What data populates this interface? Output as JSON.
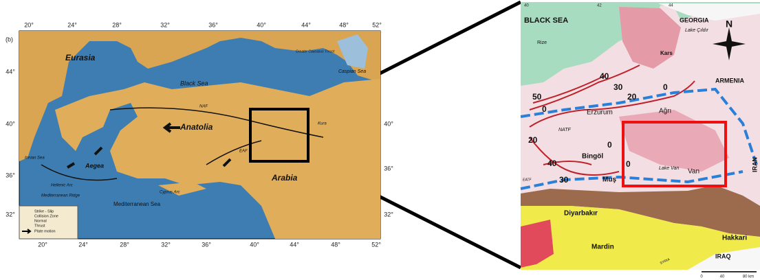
{
  "left_map": {
    "panel_label": "(b)",
    "lon_ticks": [
      "20°",
      "24°",
      "28°",
      "32°",
      "36°",
      "40°",
      "44°",
      "48°",
      "52°"
    ],
    "lat_ticks_left": [
      "44°",
      "40°",
      "36°",
      "32°"
    ],
    "lat_ticks_right": [
      "40°",
      "36°",
      "32°"
    ],
    "labels": [
      "Eurasia",
      "Black Sea",
      "Caspian Sea",
      "Anatolia",
      "Aegea",
      "Arabia",
      "Mediterranean Sea",
      "Cyprus Arc",
      "NAF",
      "EAF",
      "Kura",
      "Ionian Sea",
      "Hellenic Arc",
      "Mediterranean Ridge",
      "Greater Caucasus Thrust"
    ],
    "legend": [
      "Strike - Slip",
      "Collision Zone",
      "Normal",
      "Thrust",
      "Plate motion"
    ]
  },
  "right_map": {
    "grid_top": [
      "40",
      "42",
      "44"
    ],
    "seas_countries": [
      "BLACK SEA",
      "GEORGIA",
      "ARMENIA",
      "IRAN",
      "IRAQ",
      "SYRIA"
    ],
    "places": [
      "Rize",
      "Kars",
      "Erzurum",
      "Ağrı",
      "Bingöl",
      "Muş",
      "Van",
      "Diyarbakır",
      "Mardin",
      "Hakkari"
    ],
    "features": [
      "Lake Çıldır",
      "Lake Van",
      "NATF",
      "EATF"
    ],
    "contours": [
      "50",
      "40",
      "30",
      "20",
      "0",
      "0",
      "20",
      "40",
      "0",
      "30",
      "0"
    ],
    "compass": "N",
    "scale": [
      "0",
      "40",
      "80 km"
    ]
  }
}
